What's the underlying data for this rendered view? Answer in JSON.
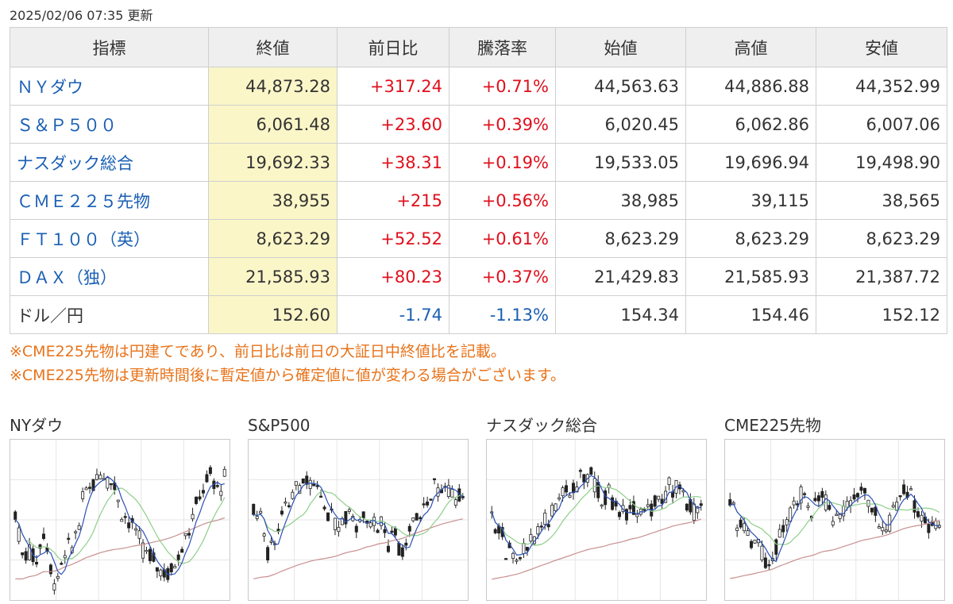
{
  "updated": "2025/02/06 07:35 更新",
  "table": {
    "headers": [
      "指標",
      "終値",
      "前日比",
      "騰落率",
      "始値",
      "高値",
      "安値"
    ],
    "rows": [
      {
        "name": "ＮＹダウ",
        "link": true,
        "close": "44,873.28",
        "change": "+317.24",
        "rate": "+0.71%",
        "open": "44,563.63",
        "high": "44,886.88",
        "low": "44,352.99",
        "dir": "up"
      },
      {
        "name": "Ｓ＆Ｐ５００",
        "link": true,
        "close": "6,061.48",
        "change": "+23.60",
        "rate": "+0.39%",
        "open": "6,020.45",
        "high": "6,062.86",
        "low": "6,007.06",
        "dir": "up"
      },
      {
        "name": "ナスダック総合",
        "link": true,
        "close": "19,692.33",
        "change": "+38.31",
        "rate": "+0.19%",
        "open": "19,533.05",
        "high": "19,696.94",
        "low": "19,498.90",
        "dir": "up"
      },
      {
        "name": "ＣＭＥ２２５先物",
        "link": true,
        "close": "38,955",
        "change": "+215",
        "rate": "+0.56%",
        "open": "38,985",
        "high": "39,115",
        "low": "38,565",
        "dir": "up"
      },
      {
        "name": "ＦＴ１００（英）",
        "link": true,
        "close": "8,623.29",
        "change": "+52.52",
        "rate": "+0.61%",
        "open": "8,623.29",
        "high": "8,623.29",
        "low": "8,623.29",
        "dir": "up"
      },
      {
        "name": "ＤＡＸ（独）",
        "link": true,
        "close": "21,585.93",
        "change": "+80.23",
        "rate": "+0.37%",
        "open": "21,429.83",
        "high": "21,585.93",
        "low": "21,387.72",
        "dir": "up"
      },
      {
        "name": "ドル／円",
        "link": false,
        "close": "152.60",
        "change": "-1.74",
        "rate": "-1.13%",
        "open": "154.34",
        "high": "154.46",
        "low": "152.12",
        "dir": "down"
      }
    ]
  },
  "notes": [
    "※CME225先物は円建てであり、前日比は前日の大証日中終値比を記載。",
    "※CME225先物は更新時間後に暫定値から確定値に値が変わる場合がございます。"
  ],
  "charts": [
    {
      "title": "NYダウ",
      "seed": 7,
      "trend": [
        0.55,
        0.25,
        0.3,
        0.2,
        0.45,
        0.15,
        0.05,
        0.25,
        0.3,
        0.45,
        0.7,
        0.75,
        0.85,
        0.82,
        0.78,
        0.6,
        0.5,
        0.45,
        0.3,
        0.25,
        0.2,
        0.15,
        0.12,
        0.2,
        0.35,
        0.45,
        0.6,
        0.75,
        0.8,
        0.72,
        0.78
      ]
    },
    {
      "title": "S&P500",
      "seed": 11,
      "trend": [
        0.55,
        0.5,
        0.3,
        0.35,
        0.5,
        0.6,
        0.7,
        0.75,
        0.78,
        0.72,
        0.6,
        0.5,
        0.45,
        0.55,
        0.5,
        0.4,
        0.55,
        0.45,
        0.5,
        0.35,
        0.4,
        0.3,
        0.35,
        0.5,
        0.55,
        0.6,
        0.7,
        0.75,
        0.72,
        0.7,
        0.65
      ]
    },
    {
      "title": "ナスダック総合",
      "seed": 19,
      "trend": [
        0.5,
        0.42,
        0.3,
        0.25,
        0.2,
        0.28,
        0.35,
        0.45,
        0.5,
        0.6,
        0.65,
        0.7,
        0.78,
        0.82,
        0.85,
        0.75,
        0.65,
        0.7,
        0.6,
        0.55,
        0.6,
        0.5,
        0.55,
        0.6,
        0.65,
        0.7,
        0.75,
        0.7,
        0.6,
        0.55,
        0.62
      ]
    },
    {
      "title": "CME225先物",
      "seed": 29,
      "trend": [
        0.6,
        0.5,
        0.45,
        0.35,
        0.3,
        0.25,
        0.2,
        0.35,
        0.45,
        0.55,
        0.65,
        0.6,
        0.55,
        0.7,
        0.6,
        0.5,
        0.55,
        0.6,
        0.65,
        0.7,
        0.6,
        0.55,
        0.45,
        0.5,
        0.6,
        0.7,
        0.65,
        0.55,
        0.45,
        0.5,
        0.4
      ]
    }
  ],
  "colors": {
    "up": "#e0101d",
    "down": "#1a5fb4",
    "link": "#1a5fb4",
    "note": "#e8731a",
    "close_bg": "#fbf6c8",
    "ma_short": "#2b4fb5",
    "ma_mid": "#8fce8a",
    "ma_long": "#c89090"
  }
}
